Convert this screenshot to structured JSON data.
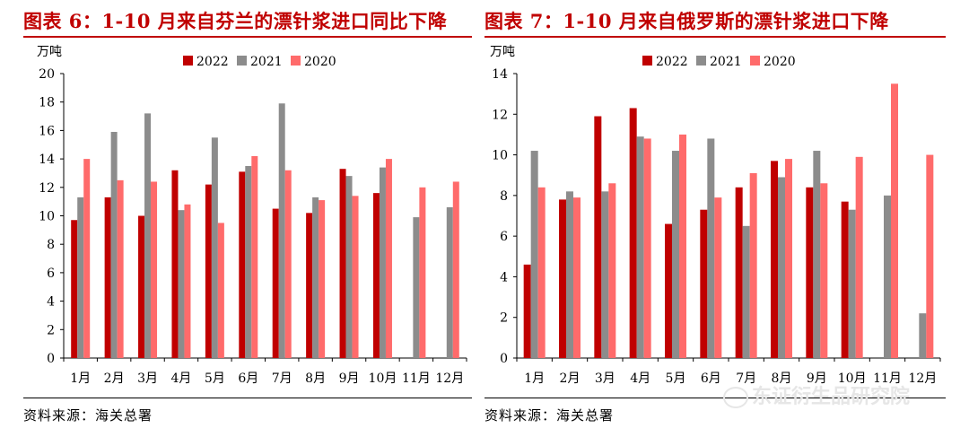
{
  "source_label": "资料来源：海关总署",
  "watermark": "东证衍生品研究院",
  "colors": {
    "s2022": "#c00000",
    "s2021": "#8c8c8c",
    "s2020": "#ff6b6b",
    "title": "#c00000"
  },
  "chart_data": [
    {
      "type": "bar",
      "title": "图表 6：1-10 月来自芬兰的漂针浆进口同比下降",
      "ylabel": "万吨",
      "ylim": [
        0,
        20
      ],
      "yticks": [
        0,
        2,
        4,
        6,
        8,
        10,
        12,
        14,
        16,
        18,
        20
      ],
      "legend_position": "top-center",
      "categories": [
        "1月",
        "2月",
        "3月",
        "4月",
        "5月",
        "6月",
        "7月",
        "8月",
        "9月",
        "10月",
        "11月",
        "12月"
      ],
      "series": [
        {
          "name": "2022",
          "values": [
            9.7,
            11.3,
            10.0,
            13.2,
            12.2,
            13.1,
            10.5,
            10.2,
            13.3,
            11.6,
            null,
            null
          ]
        },
        {
          "name": "2021",
          "values": [
            11.3,
            15.9,
            17.2,
            10.4,
            15.5,
            13.5,
            17.9,
            11.3,
            12.8,
            13.4,
            9.9,
            10.6
          ]
        },
        {
          "name": "2020",
          "values": [
            14.0,
            12.5,
            12.4,
            10.8,
            9.5,
            14.2,
            13.2,
            11.1,
            11.4,
            14.0,
            12.0,
            12.4
          ]
        }
      ]
    },
    {
      "type": "bar",
      "title": "图表 7：1-10 月来自俄罗斯的漂针浆进口下降",
      "ylabel": "万吨",
      "ylim": [
        0,
        14
      ],
      "yticks": [
        0,
        2,
        4,
        6,
        8,
        10,
        12,
        14
      ],
      "legend_position": "top-center",
      "categories": [
        "1月",
        "2月",
        "3月",
        "4月",
        "5月",
        "6月",
        "7月",
        "8月",
        "9月",
        "10月",
        "11月",
        "12月"
      ],
      "series": [
        {
          "name": "2022",
          "values": [
            4.6,
            7.8,
            11.9,
            12.3,
            6.6,
            7.3,
            8.4,
            9.7,
            8.4,
            7.7,
            null,
            null
          ]
        },
        {
          "name": "2021",
          "values": [
            10.2,
            8.2,
            8.2,
            10.9,
            10.2,
            10.8,
            6.5,
            8.9,
            10.2,
            7.3,
            8.0,
            2.2
          ]
        },
        {
          "name": "2020",
          "values": [
            8.4,
            7.9,
            8.6,
            10.8,
            11.0,
            7.9,
            9.1,
            9.8,
            8.6,
            9.9,
            13.5,
            10.0
          ]
        }
      ]
    }
  ]
}
